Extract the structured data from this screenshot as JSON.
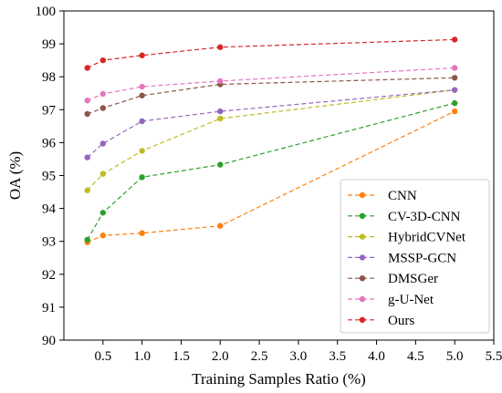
{
  "chart_data": {
    "type": "line",
    "title": "",
    "xlabel": "Training Samples Ratio (%)",
    "ylabel": "OA (%)",
    "xlim": [
      0,
      5.5
    ],
    "ylim": [
      90,
      100
    ],
    "xticks": [
      "0.5",
      "1.0",
      "1.5",
      "2.0",
      "2.5",
      "3.0",
      "3.5",
      "4.0",
      "4.5",
      "5.0",
      "5.5"
    ],
    "yticks": [
      "90",
      "91",
      "92",
      "93",
      "94",
      "95",
      "96",
      "97",
      "98",
      "99",
      "100"
    ],
    "x": [
      0.3,
      0.5,
      1.0,
      2.0,
      5.0
    ],
    "legend_position": "lower-right",
    "grid": false,
    "series": [
      {
        "name": "CNN",
        "color": "#ff7f0e",
        "values": [
          92.97,
          93.18,
          93.25,
          93.47,
          96.95
        ]
      },
      {
        "name": "CV-3D-CNN",
        "color": "#2ca02c",
        "values": [
          93.05,
          93.87,
          94.95,
          95.33,
          97.2
        ]
      },
      {
        "name": "HybridCVNet",
        "color": "#bcbd22",
        "values": [
          94.55,
          95.05,
          95.75,
          96.73,
          97.6
        ]
      },
      {
        "name": "MSSP-GCN",
        "color": "#9467bd",
        "values": [
          95.55,
          95.97,
          96.65,
          96.95,
          97.6
        ]
      },
      {
        "name": "DMSGer",
        "color": "#8c564b",
        "values": [
          96.87,
          97.05,
          97.43,
          97.77,
          97.97
        ]
      },
      {
        "name": "g-U-Net",
        "color": "#e377c2",
        "values": [
          97.28,
          97.48,
          97.7,
          97.87,
          98.27
        ]
      },
      {
        "name": "Ours",
        "color": "#d62728",
        "values": [
          98.27,
          98.5,
          98.65,
          98.9,
          99.13
        ]
      }
    ]
  }
}
